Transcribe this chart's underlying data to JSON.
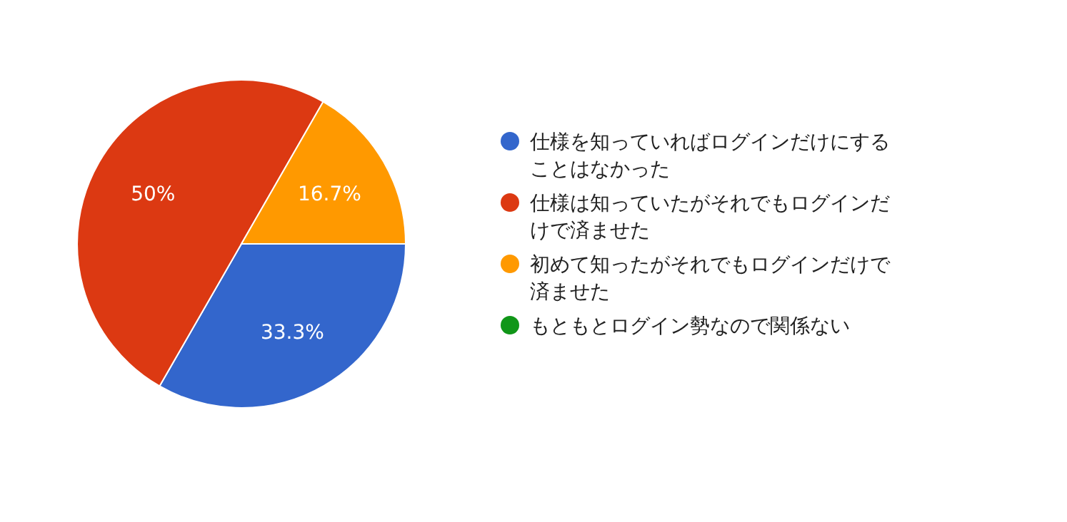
{
  "chart_data": {
    "type": "pie",
    "categories": [
      "仕様を知っていればログインだけにすることはなかった",
      "仕様は知っていたがそれでもログインだけで済ませた",
      "初めて知ったがそれでもログインだけで済ませた",
      "もともとログイン勢なので関係ない"
    ],
    "values": [
      33.3,
      50,
      16.7,
      0
    ],
    "colors": [
      "#3366cc",
      "#dc3912",
      "#ff9900",
      "#109618"
    ],
    "value_labels": [
      "33.3%",
      "50%",
      "16.7%",
      null
    ],
    "legend": "right"
  }
}
